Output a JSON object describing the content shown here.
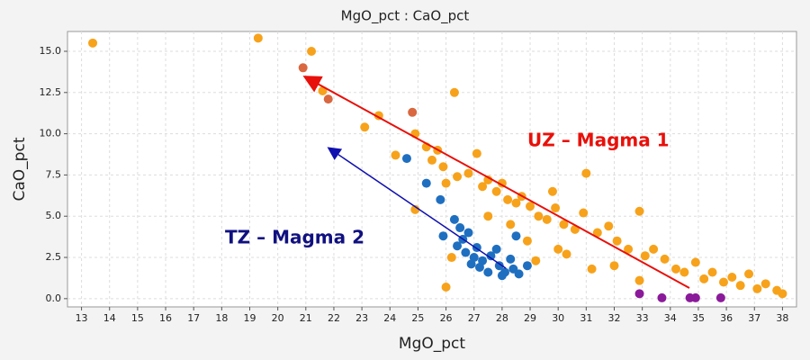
{
  "chart_data": {
    "type": "scatter",
    "title": "MgO_pct : CaO_pct",
    "x_label": "MgO_pct",
    "y_label": "CaO_pct",
    "annotations": [
      "UZ – Magma 1",
      "TZ – Magma 2"
    ],
    "xlim": [
      12.5,
      38.5
    ],
    "ylim": [
      -0.5,
      16.2
    ],
    "xticks": [
      13,
      14,
      15,
      16,
      17,
      18,
      19,
      20,
      21,
      22,
      23,
      24,
      25,
      26,
      27,
      28,
      29,
      30,
      31,
      32,
      33,
      34,
      35,
      36,
      37,
      38
    ],
    "yticks": [
      {
        "value": 0,
        "label": "0.0"
      },
      2.5,
      {
        "value": 5,
        "label": "5.0"
      },
      7.5,
      {
        "value": 10,
        "label": "10.0"
      },
      12.5,
      {
        "value": 15,
        "label": "15.0"
      }
    ],
    "grid": true,
    "series": [
      {
        "color": "#f7a21b",
        "x": [
          13.4,
          19.3,
          21.2,
          21.6,
          23.1,
          23.6,
          24.2,
          24.9,
          24.9,
          25.3,
          25.5,
          25.9,
          26.0,
          26.3,
          26.4,
          26.8,
          27.1,
          27.3,
          27.5,
          27.8,
          28.0,
          28.2,
          28.5,
          28.7,
          29.0,
          29.3,
          29.6,
          29.9,
          30.2,
          30.6,
          30.9,
          31.0,
          31.4,
          31.8,
          32.1,
          32.5,
          32.9,
          33.1,
          33.4,
          33.8,
          34.2,
          34.5,
          34.9,
          35.2,
          35.5,
          35.9,
          36.2,
          36.5,
          36.8,
          37.1,
          37.4,
          37.8,
          38.0,
          26.0,
          28.9,
          29.2,
          30.0,
          30.3,
          31.2,
          32.0,
          29.8,
          27.5,
          28.3,
          25.7,
          32.9,
          26.2
        ],
        "values": [
          15.5,
          15.8,
          15.0,
          12.6,
          10.4,
          11.1,
          8.7,
          5.4,
          10.0,
          9.2,
          8.4,
          8.0,
          7.0,
          12.5,
          7.4,
          7.6,
          8.8,
          6.8,
          7.2,
          6.5,
          7.0,
          6.0,
          5.8,
          6.2,
          5.6,
          5.0,
          4.8,
          5.5,
          4.5,
          4.2,
          5.2,
          7.6,
          4.0,
          4.4,
          3.5,
          3.0,
          5.3,
          2.6,
          3.0,
          2.4,
          1.8,
          1.6,
          2.2,
          1.2,
          1.6,
          1.0,
          1.3,
          0.8,
          1.5,
          0.6,
          0.9,
          0.5,
          0.3,
          0.7,
          3.5,
          2.3,
          3.0,
          2.7,
          1.8,
          2.0,
          6.5,
          5.0,
          4.5,
          9.0,
          1.1,
          2.5
        ]
      },
      {
        "color": "#1f6fc0",
        "x": [
          24.6,
          25.3,
          25.8,
          26.3,
          26.5,
          26.8,
          25.9,
          26.4,
          26.7,
          27.0,
          27.3,
          27.6,
          27.9,
          28.1,
          28.4,
          28.6,
          28.9,
          27.2,
          27.5,
          26.9,
          28.3,
          27.8,
          28.0,
          26.6,
          27.1,
          28.5
        ],
        "values": [
          8.5,
          7.0,
          6.0,
          4.8,
          4.3,
          4.0,
          3.8,
          3.2,
          2.8,
          2.5,
          2.3,
          2.6,
          2.0,
          1.6,
          1.8,
          1.5,
          2.0,
          1.9,
          1.6,
          2.1,
          2.4,
          3.0,
          1.4,
          3.6,
          3.1,
          3.8
        ]
      },
      {
        "color": "#8b1a9a",
        "x": [
          32.9,
          33.7,
          34.7,
          34.9,
          35.8
        ],
        "values": [
          0.3,
          0.05,
          0.05,
          0.05,
          0.05
        ]
      },
      {
        "color": "#d9673f",
        "x": [
          20.9,
          21.8,
          24.8
        ],
        "values": [
          14.0,
          12.1,
          11.3
        ]
      }
    ]
  }
}
